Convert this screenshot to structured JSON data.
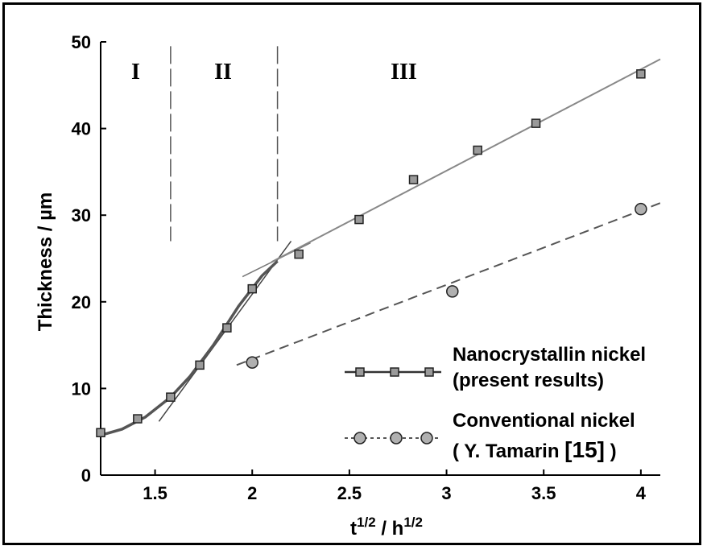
{
  "chart_data": {
    "type": "scatter",
    "xlabel": "t",
    "xlabel_sup": "1/2",
    "xlabel_mid": " / h",
    "xlabel_sup2": "1/2",
    "ylabel": "Thickness / µm",
    "xlim": [
      1.22,
      4.1
    ],
    "ylim": [
      0,
      50
    ],
    "x_ticks": [
      1.5,
      2,
      2.5,
      3,
      3.5,
      4
    ],
    "x_tick_labels": [
      "1.5",
      "2",
      "2.5",
      "3",
      "3.5",
      "4"
    ],
    "y_ticks": [
      0,
      10,
      20,
      30,
      40,
      50
    ],
    "y_tick_labels": [
      "0",
      "10",
      "20",
      "30",
      "40",
      "50"
    ],
    "grid": false,
    "legend_position": "bottom-right",
    "regions": [
      {
        "label": "I",
        "x_center": 1.4
      },
      {
        "label": "II",
        "x_center": 1.85
      },
      {
        "label": "III",
        "x_center": 2.78
      }
    ],
    "region_boundaries": [
      1.58,
      2.13
    ],
    "series": [
      {
        "name": "Nanocrystallin nickel",
        "name_line2": "(present results)",
        "marker": "square",
        "color": "#9a9a9a",
        "line_color": "#333333",
        "x": [
          1.22,
          1.41,
          1.58,
          1.73,
          1.87,
          2.0,
          2.24,
          2.55,
          2.83,
          3.16,
          3.46,
          4.0
        ],
        "y": [
          4.9,
          6.5,
          9.0,
          12.7,
          17.0,
          21.5,
          25.5,
          29.5,
          34.1,
          37.5,
          40.6,
          46.3
        ]
      },
      {
        "name": "Conventional nickel",
        "name_line2_prefix": "( Y. Tamarin ",
        "name_line2_ref": "[15]",
        "name_line2_suffix": " )",
        "marker": "circle",
        "color": "#b0b0b0",
        "line_color": "#555555",
        "x": [
          2.0,
          3.03,
          4.0
        ],
        "y": [
          13.0,
          21.2,
          30.7
        ]
      }
    ],
    "fits": {
      "nano_curve": {
        "x": [
          1.22,
          1.33,
          1.45,
          1.58,
          1.68,
          1.8,
          1.93,
          2.05,
          2.13
        ],
        "y": [
          4.6,
          5.3,
          6.7,
          9.0,
          11.4,
          15.0,
          19.5,
          23.0,
          24.7
        ]
      },
      "nano_tangent_steep": {
        "x": [
          1.52,
          2.2
        ],
        "y": [
          6.2,
          27.0
        ]
      },
      "nano_tangent_shallow": {
        "x": [
          1.95,
          2.3
        ],
        "y": [
          22.9,
          26.8
        ]
      },
      "nano_line_III": {
        "x": [
          2.1,
          4.1
        ],
        "y": [
          24.6,
          48.0
        ]
      },
      "conv_line": {
        "x": [
          1.92,
          4.1
        ],
        "y": [
          12.7,
          31.4
        ]
      }
    }
  }
}
